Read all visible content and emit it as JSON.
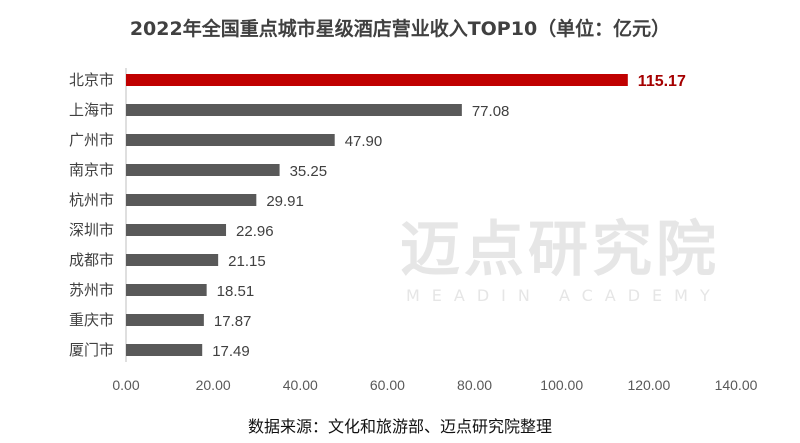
{
  "chart_data": {
    "type": "bar",
    "orientation": "horizontal",
    "title": "2022年全国重点城市星级酒店营业收入TOP10（单位：亿元）",
    "categories": [
      "北京市",
      "上海市",
      "广州市",
      "南京市",
      "杭州市",
      "深圳市",
      "成都市",
      "苏州市",
      "重庆市",
      "厦门市"
    ],
    "values": [
      115.17,
      77.08,
      47.9,
      35.25,
      29.91,
      22.96,
      21.15,
      18.51,
      17.87,
      17.49
    ],
    "value_labels": [
      "115.17",
      "77.08",
      "47.90",
      "35.25",
      "29.91",
      "22.96",
      "21.15",
      "18.51",
      "17.87",
      "17.49"
    ],
    "xlim": [
      0,
      140
    ],
    "x_ticks": [
      "0.00",
      "20.00",
      "40.00",
      "60.00",
      "80.00",
      "100.00",
      "120.00",
      "140.00"
    ],
    "grid": false,
    "colors": {
      "highlight": "#C00000",
      "default": "#595959",
      "highlight_label": "#A50000"
    }
  },
  "source": "数据来源：文化和旅游部、迈点研究院整理",
  "watermark": {
    "cn": "迈点研究院",
    "en": "MEADIN ACADEMY"
  }
}
